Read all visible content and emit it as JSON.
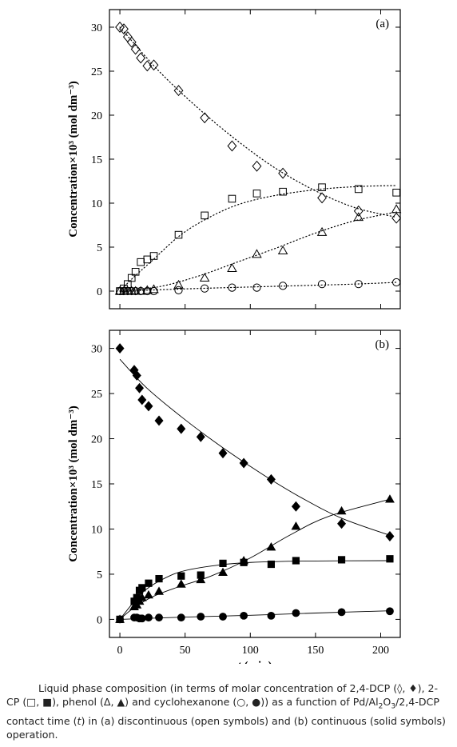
{
  "chart_data": [
    {
      "type": "scatter",
      "panel_label": "(a)",
      "xlim": [
        -8,
        215
      ],
      "ylim": [
        -2,
        32
      ],
      "yticks": [
        0,
        5,
        10,
        15,
        20,
        25,
        30
      ],
      "ylabel": "Concentration×10³ (mol dm⁻³)",
      "xlabel": "",
      "markers": "open",
      "fit_style": "dotted",
      "series": [
        {
          "symbol": "diamond",
          "x": [
            0,
            3,
            6,
            9,
            12,
            16,
            21,
            26,
            45,
            65,
            86,
            105,
            125,
            155,
            183,
            212
          ],
          "y": [
            30,
            29.8,
            28.9,
            28.3,
            27.5,
            26.5,
            25.6,
            25.7,
            22.8,
            19.7,
            16.5,
            14.2,
            13.4,
            10.6,
            9.1,
            8.3
          ],
          "fit": [
            [
              0,
              30
            ],
            [
              30,
              25
            ],
            [
              60,
              20.8
            ],
            [
              90,
              17.1
            ],
            [
              120,
              13.9
            ],
            [
              150,
              11.4
            ],
            [
              180,
              9.5
            ],
            [
              212,
              8.4
            ]
          ]
        },
        {
          "symbol": "square",
          "x": [
            0,
            3,
            6,
            9,
            12,
            16,
            21,
            26,
            45,
            65,
            86,
            105,
            125,
            155,
            183,
            212
          ],
          "y": [
            0,
            0.3,
            0.8,
            1.5,
            2.2,
            3.3,
            3.6,
            4,
            6.4,
            8.6,
            10.5,
            11.1,
            11.3,
            11.8,
            11.6,
            11.2
          ],
          "fit": [
            [
              0,
              0
            ],
            [
              10,
              1.5
            ],
            [
              25,
              3.5
            ],
            [
              45,
              6.2
            ],
            [
              65,
              8.1
            ],
            [
              90,
              9.8
            ],
            [
              120,
              10.9
            ],
            [
              155,
              11.6
            ],
            [
              185,
              11.9
            ],
            [
              212,
              12
            ]
          ]
        },
        {
          "symbol": "triangle",
          "x": [
            0,
            3,
            6,
            9,
            12,
            16,
            21,
            26,
            45,
            65,
            86,
            105,
            125,
            155,
            183,
            212
          ],
          "y": [
            0,
            0,
            0,
            0,
            0,
            0,
            0.1,
            0.2,
            0.7,
            1.5,
            2.6,
            4.2,
            4.6,
            6.7,
            8.4,
            9.3
          ],
          "fit": [
            [
              0,
              0
            ],
            [
              30,
              0.5
            ],
            [
              60,
              1.7
            ],
            [
              90,
              3.3
            ],
            [
              120,
              4.9
            ],
            [
              150,
              6.6
            ],
            [
              180,
              8
            ],
            [
              212,
              9
            ]
          ]
        },
        {
          "symbol": "circle",
          "x": [
            0,
            3,
            6,
            9,
            12,
            16,
            21,
            26,
            45,
            65,
            86,
            105,
            125,
            155,
            183,
            212
          ],
          "y": [
            0,
            0,
            0,
            0,
            0,
            0,
            0,
            0,
            0.1,
            0.3,
            0.4,
            0.4,
            0.6,
            0.8,
            0.8,
            1
          ],
          "fit": [
            [
              0,
              0
            ],
            [
              60,
              0.3
            ],
            [
              120,
              0.55
            ],
            [
              180,
              0.8
            ],
            [
              212,
              1
            ]
          ]
        }
      ]
    },
    {
      "type": "scatter",
      "panel_label": "(b)",
      "xlim": [
        -8,
        215
      ],
      "ylim": [
        -2,
        32
      ],
      "xticks": [
        0,
        50,
        100,
        150,
        200
      ],
      "yticks": [
        0,
        5,
        10,
        15,
        20,
        25,
        30
      ],
      "ylabel": "Concentration×10³ (mol dm⁻³)",
      "xlabel_italic": "t",
      "xlabel_unit": " (min)",
      "markers": "solid",
      "fit_style": "solid",
      "series": [
        {
          "symbol": "diamond",
          "x": [
            0,
            11,
            13,
            15,
            17,
            22,
            30,
            47,
            62,
            79,
            95,
            116,
            135,
            170,
            207
          ],
          "y": [
            30,
            27.6,
            27,
            25.6,
            24.3,
            23.6,
            22,
            21.1,
            20.2,
            18.4,
            17.3,
            15.5,
            12.5,
            10.6,
            9.2
          ],
          "fit": [
            [
              0,
              28.8
            ],
            [
              20,
              25.7
            ],
            [
              50,
              22.1
            ],
            [
              80,
              18.9
            ],
            [
              110,
              16
            ],
            [
              140,
              13.4
            ],
            [
              170,
              11.2
            ],
            [
              207,
              9.3
            ]
          ]
        },
        {
          "symbol": "square",
          "x": [
            0,
            11,
            13,
            15,
            17,
            22,
            30,
            47,
            62,
            79,
            95,
            116,
            135,
            170,
            207
          ],
          "y": [
            0,
            2,
            2.4,
            3.2,
            3.5,
            4,
            4.5,
            4.8,
            4.9,
            6.2,
            6.3,
            6.1,
            6.5,
            6.6,
            6.7
          ],
          "fit": [
            [
              0,
              0
            ],
            [
              10,
              1.8
            ],
            [
              20,
              3.3
            ],
            [
              35,
              4.6
            ],
            [
              50,
              5.4
            ],
            [
              75,
              6
            ],
            [
              100,
              6.3
            ],
            [
              140,
              6.45
            ],
            [
              207,
              6.5
            ]
          ]
        },
        {
          "symbol": "triangle",
          "x": [
            0,
            11,
            13,
            15,
            17,
            22,
            30,
            47,
            62,
            79,
            95,
            116,
            135,
            170,
            207
          ],
          "y": [
            0,
            1.4,
            1.6,
            2,
            2.4,
            2.7,
            3.1,
            3.9,
            4.4,
            5.2,
            6.5,
            8,
            10.3,
            12,
            13.3
          ],
          "fit": [
            [
              0,
              0
            ],
            [
              10,
              1.2
            ],
            [
              25,
              2.5
            ],
            [
              45,
              3.6
            ],
            [
              70,
              4.8
            ],
            [
              100,
              6.8
            ],
            [
              130,
              9.3
            ],
            [
              160,
              11.4
            ],
            [
              207,
              13.3
            ]
          ]
        },
        {
          "symbol": "circle",
          "x": [
            0,
            11,
            13,
            15,
            17,
            22,
            30,
            47,
            62,
            79,
            95,
            116,
            135,
            170,
            207
          ],
          "y": [
            0,
            0.2,
            0.2,
            0.1,
            0.1,
            0.2,
            0.2,
            0.2,
            0.3,
            0.3,
            0.4,
            0.4,
            0.7,
            0.8,
            0.9
          ],
          "fit": [
            [
              0,
              0
            ],
            [
              50,
              0.25
            ],
            [
              100,
              0.45
            ],
            [
              150,
              0.7
            ],
            [
              207,
              0.95
            ]
          ]
        }
      ]
    }
  ],
  "caption": {
    "t1": "Liquid phase composition (in terms of molar concentration of 2,4-DCP (◊, ♦), 2-CP (□, ■), phenol (Δ, ▲) and cyclohexanone (○, ●)) as a function of Pd/Al",
    "sub1": "2",
    "t2": "O",
    "sub2": "3",
    "t3": "/2,4-DCP contact time (",
    "t_italic": "t",
    "t4": ") in (a) discontinuous (open symbols) and (b) continuous (solid symbols) operation."
  }
}
